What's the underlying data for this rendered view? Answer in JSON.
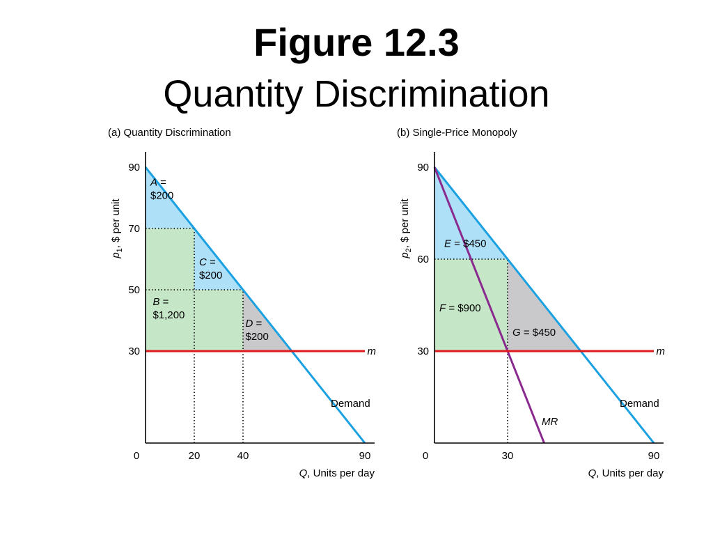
{
  "slide": {
    "title": "Figure 12.3",
    "subtitle": "Quantity Discrimination"
  },
  "colors": {
    "demand": "#1ba1e2",
    "area_blue": "#aee0f8",
    "area_green": "#c6e6c8",
    "area_gray": "#c9c9cb",
    "mc_line": "#e0191b",
    "mr_line": "#8a2a8e",
    "axis": "#000000"
  },
  "chart_data": [
    {
      "type": "line",
      "panel_label": "(a) Quantity Discrimination",
      "ylabel": "p1, $ per unit",
      "xlabel": "Q, Units per day",
      "xlim": [
        0,
        90
      ],
      "ylim": [
        0,
        90
      ],
      "xticks": [
        0,
        20,
        40,
        90
      ],
      "yticks": [
        30,
        50,
        70,
        90
      ],
      "series": [
        {
          "name": "Demand",
          "x": [
            0,
            90
          ],
          "y": [
            90,
            0
          ]
        },
        {
          "name": "m",
          "x": [
            0,
            90
          ],
          "y": [
            30,
            30
          ]
        }
      ],
      "reference_lines": [
        {
          "from": [
            0,
            70
          ],
          "to": [
            20,
            70
          ]
        },
        {
          "from": [
            0,
            50
          ],
          "to": [
            40,
            50
          ]
        },
        {
          "from": [
            20,
            0
          ],
          "to": [
            20,
            70
          ]
        },
        {
          "from": [
            40,
            0
          ],
          "to": [
            40,
            50
          ]
        }
      ],
      "areas": [
        {
          "fill": "area_blue",
          "points": [
            [
              0,
              90
            ],
            [
              20,
              70
            ],
            [
              0,
              70
            ]
          ]
        },
        {
          "fill": "area_blue",
          "points": [
            [
              20,
              70
            ],
            [
              40,
              50
            ],
            [
              20,
              50
            ]
          ]
        },
        {
          "fill": "area_green",
          "points": [
            [
              0,
              70
            ],
            [
              20,
              70
            ],
            [
              20,
              50
            ],
            [
              40,
              50
            ],
            [
              40,
              30
            ],
            [
              0,
              30
            ]
          ]
        },
        {
          "fill": "area_gray",
          "points": [
            [
              40,
              50
            ],
            [
              60,
              30
            ],
            [
              40,
              30
            ]
          ]
        }
      ],
      "annotations": [
        {
          "var": "A",
          "lines": [
            "A =",
            "$200"
          ],
          "at": [
            2,
            84
          ]
        },
        {
          "var": "C",
          "lines": [
            "C =",
            "$200"
          ],
          "at": [
            22,
            58
          ]
        },
        {
          "var": "B",
          "lines": [
            "B =",
            "$1,200"
          ],
          "at": [
            3,
            45
          ]
        },
        {
          "var": "D",
          "lines": [
            "D =",
            "$200"
          ],
          "at": [
            41,
            38
          ]
        }
      ],
      "line_labels": [
        {
          "text": "m",
          "italic": true,
          "at": [
            91,
            30
          ]
        },
        {
          "text": "Demand",
          "italic": false,
          "at": [
            76,
            13
          ]
        }
      ]
    },
    {
      "type": "line",
      "panel_label": "(b) Single-Price Monopoly",
      "ylabel": "p2, $ per unit",
      "xlabel": "Q, Units per day",
      "xlim": [
        0,
        90
      ],
      "ylim": [
        0,
        90
      ],
      "xticks": [
        0,
        30,
        90
      ],
      "yticks": [
        30,
        60,
        90
      ],
      "series": [
        {
          "name": "Demand",
          "x": [
            0,
            90
          ],
          "y": [
            90,
            0
          ]
        },
        {
          "name": "MR",
          "x": [
            0,
            45
          ],
          "y": [
            90,
            0
          ]
        },
        {
          "name": "m",
          "x": [
            0,
            90
          ],
          "y": [
            30,
            30
          ]
        }
      ],
      "reference_lines": [
        {
          "from": [
            0,
            60
          ],
          "to": [
            30,
            60
          ]
        },
        {
          "from": [
            30,
            0
          ],
          "to": [
            30,
            60
          ]
        }
      ],
      "areas": [
        {
          "fill": "area_blue",
          "points": [
            [
              0,
              90
            ],
            [
              30,
              60
            ],
            [
              0,
              60
            ]
          ]
        },
        {
          "fill": "area_green",
          "points": [
            [
              0,
              60
            ],
            [
              30,
              60
            ],
            [
              30,
              30
            ],
            [
              0,
              30
            ]
          ]
        },
        {
          "fill": "area_gray",
          "points": [
            [
              30,
              60
            ],
            [
              60,
              30
            ],
            [
              30,
              30
            ]
          ]
        }
      ],
      "annotations": [
        {
          "var": "E",
          "lines": [
            "E = $450"
          ],
          "at": [
            4,
            64
          ]
        },
        {
          "var": "F",
          "lines": [
            "F = $900"
          ],
          "at": [
            2,
            43
          ]
        },
        {
          "var": "G",
          "lines": [
            "G = $450"
          ],
          "at": [
            32,
            35
          ]
        }
      ],
      "line_labels": [
        {
          "text": "m",
          "italic": true,
          "at": [
            91,
            30
          ]
        },
        {
          "text": "Demand",
          "italic": false,
          "at": [
            76,
            13
          ]
        },
        {
          "text": "MR",
          "italic": true,
          "at": [
            44,
            7
          ]
        }
      ]
    }
  ]
}
